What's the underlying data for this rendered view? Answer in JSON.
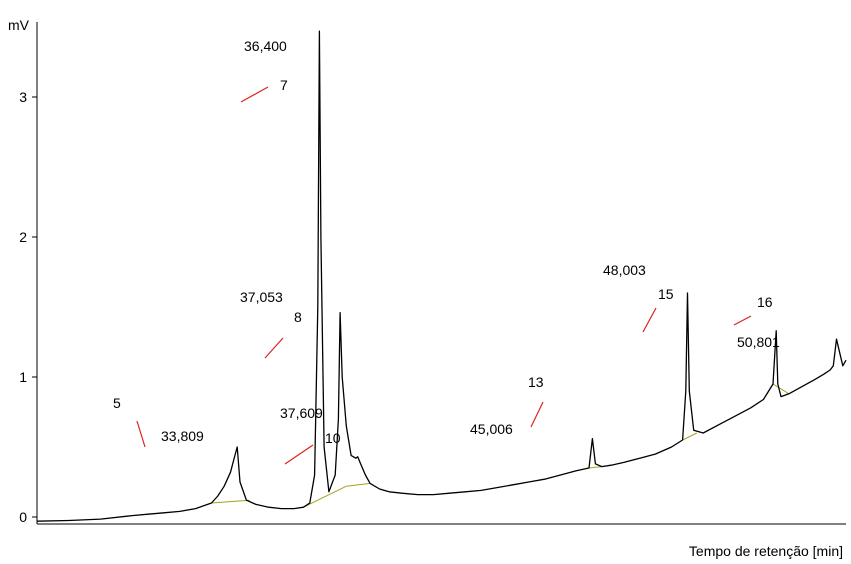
{
  "chart_data": {
    "type": "line",
    "title": "",
    "ylabel": "mV",
    "xlabel": "Tempo de retenção [min]",
    "ylim": [
      0,
      3.5
    ],
    "xlim": [
      27.5,
      53.0
    ],
    "yticks": [
      0,
      1,
      2,
      3
    ],
    "grid": false,
    "colors": {
      "trace": "#000000",
      "marker": "#e02020",
      "baseline": "#a6a020"
    },
    "series": [
      {
        "x": [
          27.5,
          28.5,
          29.5,
          30.5,
          31.0,
          31.5,
          32.0,
          32.5,
          33.0,
          33.2,
          33.4,
          33.6,
          33.75,
          33.81,
          33.9,
          34.1,
          34.4,
          34.8,
          35.2,
          35.6,
          35.9,
          36.1,
          36.25,
          36.35,
          36.4,
          36.45,
          36.55,
          36.7,
          36.9,
          37.0,
          37.053,
          37.12,
          37.25,
          37.4,
          37.55,
          37.609,
          37.7,
          37.85,
          38.0,
          38.3,
          38.6,
          39.0,
          39.5,
          40.0,
          40.5,
          41.0,
          41.5,
          42.0,
          42.5,
          43.0,
          43.5,
          44.0,
          44.5,
          44.9,
          45.006,
          45.1,
          45.3,
          45.6,
          46.0,
          46.5,
          47.0,
          47.5,
          47.85,
          47.95,
          48.003,
          48.06,
          48.2,
          48.5,
          49.0,
          49.5,
          50.0,
          50.4,
          50.7,
          50.8,
          50.85,
          50.95,
          51.2,
          51.6,
          52.0,
          52.3,
          52.5,
          52.6,
          52.7,
          52.9,
          53.0
        ],
        "y": [
          -0.03,
          -0.025,
          -0.015,
          0.01,
          0.02,
          0.03,
          0.04,
          0.06,
          0.1,
          0.15,
          0.22,
          0.32,
          0.45,
          0.5,
          0.25,
          0.12,
          0.09,
          0.07,
          0.06,
          0.06,
          0.07,
          0.1,
          0.3,
          1.5,
          3.47,
          2.0,
          0.5,
          0.18,
          0.3,
          0.7,
          1.46,
          1.0,
          0.65,
          0.44,
          0.42,
          0.43,
          0.38,
          0.3,
          0.24,
          0.2,
          0.18,
          0.17,
          0.16,
          0.16,
          0.17,
          0.18,
          0.19,
          0.21,
          0.23,
          0.25,
          0.27,
          0.3,
          0.33,
          0.35,
          0.56,
          0.38,
          0.36,
          0.37,
          0.39,
          0.42,
          0.45,
          0.5,
          0.55,
          0.9,
          1.6,
          0.9,
          0.62,
          0.6,
          0.66,
          0.72,
          0.78,
          0.84,
          0.95,
          1.33,
          0.95,
          0.86,
          0.88,
          0.93,
          0.98,
          1.02,
          1.05,
          1.08,
          1.27,
          1.08,
          1.12
        ]
      }
    ],
    "peaks": [
      {
        "x": 33.809,
        "y": 0.5,
        "number": "5",
        "time": "33,809"
      },
      {
        "x": 36.4,
        "y": 3.47,
        "number": "7",
        "time": "36,400"
      },
      {
        "x": 37.053,
        "y": 1.46,
        "number": "8",
        "time": "37,053"
      },
      {
        "x": 37.609,
        "y": 0.43,
        "number": "10",
        "time": "37,609"
      },
      {
        "x": 45.006,
        "y": 0.56,
        "number": "13",
        "time": "45,006"
      },
      {
        "x": 48.003,
        "y": 1.6,
        "number": "15",
        "time": "48,003"
      },
      {
        "x": 50.801,
        "y": 1.33,
        "number": "16",
        "time": "50,801"
      }
    ]
  }
}
